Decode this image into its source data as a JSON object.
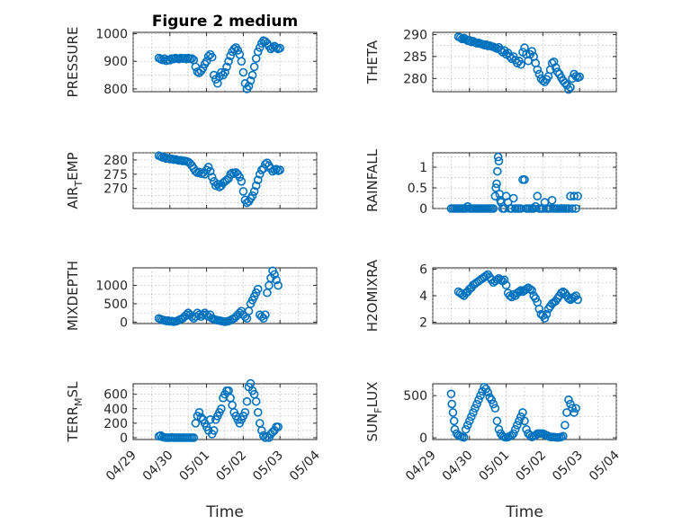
{
  "figure": {
    "background": "#ffffff",
    "marker_color": "#0072bd",
    "xlabel": "Time"
  },
  "chart_data": [
    {
      "id": "pressure",
      "type": "scatter",
      "title": "Figure 2 medium",
      "ylabel_main": "PRESSURE",
      "ylabel_sub": "",
      "ylabel_tail": "",
      "ylim": [
        790,
        1005
      ],
      "yticks": [
        800,
        900,
        1000
      ],
      "ytick_labels": [
        "800",
        "900",
        "1000"
      ],
      "x": [
        0.7,
        0.75,
        0.8,
        0.85,
        0.9,
        0.95,
        1.0,
        1.05,
        1.1,
        1.15,
        1.2,
        1.25,
        1.3,
        1.35,
        1.4,
        1.45,
        1.5,
        1.55,
        1.6,
        1.65,
        1.7,
        1.75,
        1.8,
        1.85,
        1.9,
        1.95,
        2.0,
        2.05,
        2.1,
        2.15,
        2.2,
        2.25,
        2.3,
        2.35,
        2.4,
        2.45,
        2.5,
        2.55,
        2.6,
        2.65,
        2.7,
        2.75,
        2.8,
        2.85,
        2.9,
        2.95,
        3.0,
        3.05,
        3.1,
        3.15,
        3.2,
        3.25,
        3.3,
        3.35,
        3.4,
        3.45,
        3.5,
        3.55,
        3.6,
        3.65,
        3.7,
        3.75,
        3.8,
        3.85,
        3.9,
        3.95,
        4.0
      ],
      "y": [
        912,
        908,
        905,
        910,
        902,
        906,
        904,
        910,
        908,
        912,
        910,
        908,
        912,
        910,
        911,
        908,
        912,
        909,
        910,
        905,
        880,
        862,
        858,
        865,
        875,
        890,
        900,
        918,
        925,
        915,
        850,
        835,
        820,
        845,
        860,
        850,
        860,
        880,
        900,
        920,
        935,
        945,
        950,
        940,
        925,
        900,
        860,
        820,
        800,
        810,
        830,
        850,
        880,
        910,
        935,
        950,
        965,
        975,
        972,
        965,
        955,
        945,
        950,
        955,
        950,
        945,
        948
      ]
    },
    {
      "id": "theta",
      "type": "scatter",
      "title": "",
      "ylabel_main": "THETA",
      "ylabel_sub": "",
      "ylabel_tail": "",
      "ylim": [
        277,
        290.5
      ],
      "yticks": [
        280,
        285,
        290
      ],
      "ytick_labels": [
        "280",
        "285",
        "290"
      ],
      "x": [
        0.7,
        0.75,
        0.8,
        0.85,
        0.9,
        0.95,
        1.0,
        1.05,
        1.1,
        1.15,
        1.2,
        1.25,
        1.3,
        1.35,
        1.4,
        1.45,
        1.5,
        1.55,
        1.6,
        1.65,
        1.7,
        1.75,
        1.8,
        1.85,
        1.9,
        1.95,
        2.0,
        2.05,
        2.1,
        2.15,
        2.2,
        2.25,
        2.3,
        2.35,
        2.4,
        2.45,
        2.5,
        2.55,
        2.6,
        2.65,
        2.7,
        2.75,
        2.8,
        2.85,
        2.9,
        2.95,
        3.0,
        3.05,
        3.1,
        3.15,
        3.2,
        3.25,
        3.3,
        3.35,
        3.4,
        3.45,
        3.5,
        3.55,
        3.6,
        3.65,
        3.7,
        3.75,
        3.8,
        3.85,
        3.9,
        3.95,
        4.0
      ],
      "y": [
        289.5,
        289.3,
        289.0,
        289.2,
        288.9,
        288.6,
        288.7,
        288.3,
        288.5,
        288.2,
        288.0,
        288.1,
        287.9,
        287.8,
        287.6,
        287.7,
        287.4,
        287.5,
        287.3,
        287.2,
        287.0,
        286.8,
        287.1,
        286.5,
        286.0,
        286.4,
        285.5,
        285.8,
        285.0,
        284.5,
        285.0,
        284.2,
        283.5,
        284.0,
        283.2,
        286.0,
        287.0,
        285.5,
        284.0,
        285.5,
        286.2,
        285.0,
        283.5,
        282.0,
        281.0,
        280.0,
        279.5,
        279.2,
        279.8,
        280.5,
        282.0,
        283.5,
        283.8,
        282.5,
        281.5,
        281.0,
        280.2,
        279.5,
        279.0,
        278.5,
        277.5,
        278.0,
        280.0,
        281.0,
        280.5,
        280.2,
        280.4
      ]
    },
    {
      "id": "air_temp",
      "type": "scatter",
      "title": "",
      "ylabel_main": "AIR",
      "ylabel_sub": "T",
      "ylabel_tail": "EMP",
      "ylim": [
        263,
        282.5
      ],
      "yticks": [
        270,
        275,
        280
      ],
      "ytick_labels": [
        "270",
        "275",
        "280"
      ],
      "x": [
        0.7,
        0.75,
        0.8,
        0.85,
        0.9,
        0.95,
        1.0,
        1.05,
        1.1,
        1.15,
        1.2,
        1.25,
        1.3,
        1.35,
        1.4,
        1.45,
        1.5,
        1.55,
        1.6,
        1.65,
        1.7,
        1.75,
        1.8,
        1.85,
        1.9,
        1.95,
        2.0,
        2.05,
        2.1,
        2.15,
        2.2,
        2.25,
        2.3,
        2.35,
        2.4,
        2.45,
        2.5,
        2.55,
        2.6,
        2.65,
        2.7,
        2.75,
        2.8,
        2.85,
        2.9,
        2.95,
        3.0,
        3.05,
        3.1,
        3.15,
        3.2,
        3.25,
        3.3,
        3.35,
        3.4,
        3.45,
        3.5,
        3.55,
        3.6,
        3.65,
        3.7,
        3.75,
        3.8,
        3.85,
        3.9,
        3.95,
        4.0
      ],
      "y": [
        281.5,
        281.2,
        280.9,
        281.0,
        280.5,
        280.6,
        280.3,
        280.4,
        280.1,
        280.2,
        280.0,
        279.8,
        279.9,
        279.6,
        279.7,
        279.5,
        279.3,
        278.8,
        278.0,
        277.0,
        276.0,
        275.5,
        275.8,
        275.2,
        275.5,
        275.0,
        276.5,
        277.5,
        276.0,
        274.0,
        272.5,
        271.0,
        271.5,
        270.5,
        271.0,
        272.0,
        272.5,
        273.0,
        273.5,
        275.0,
        275.5,
        275.2,
        275.6,
        275.0,
        274.0,
        272.5,
        269.0,
        266.0,
        265.0,
        265.5,
        266.5,
        267.5,
        269.0,
        271.0,
        273.0,
        275.0,
        276.5,
        277.0,
        278.5,
        279.0,
        278.0,
        277.0,
        276.0,
        276.5,
        276.8,
        276.2,
        276.5
      ]
    },
    {
      "id": "rainfall",
      "type": "scatter",
      "title": "",
      "ylabel_main": "RAINFALL",
      "ylabel_sub": "",
      "ylabel_tail": "",
      "ylim": [
        0,
        1.35
      ],
      "yticks": [
        0,
        0.5,
        1
      ],
      "ytick_labels": [
        "0",
        "0.5",
        "1"
      ],
      "x": [
        0.5,
        0.55,
        0.6,
        0.65,
        0.7,
        0.75,
        0.8,
        0.85,
        0.9,
        0.95,
        1.0,
        1.05,
        1.1,
        1.15,
        1.2,
        1.25,
        1.3,
        1.35,
        1.4,
        1.45,
        1.5,
        1.55,
        1.6,
        1.65,
        1.7,
        1.72,
        1.74,
        1.76,
        1.78,
        1.8,
        1.82,
        1.84,
        1.86,
        1.9,
        1.95,
        2.0,
        2.05,
        2.1,
        2.15,
        2.2,
        2.25,
        2.3,
        2.35,
        2.4,
        2.45,
        2.5,
        2.55,
        2.6,
        2.65,
        2.7,
        2.75,
        2.8,
        2.85,
        2.9,
        2.95,
        3.0,
        3.05,
        3.1,
        3.15,
        3.2,
        3.25,
        3.3,
        3.35,
        3.4,
        3.45,
        3.5,
        3.55,
        3.6,
        3.65,
        3.7,
        3.75,
        3.8,
        3.85,
        3.9,
        3.95
      ],
      "y": [
        0,
        0,
        0,
        0,
        0,
        0,
        0,
        0,
        0,
        0.05,
        0,
        0,
        0,
        0,
        0,
        0,
        0,
        0,
        0,
        0,
        0,
        0,
        0,
        0,
        0.3,
        0.5,
        0.6,
        0.9,
        1.25,
        1.15,
        0.35,
        0.2,
        0.15,
        0,
        0,
        0.3,
        0.15,
        0,
        0,
        0.25,
        0,
        0,
        0,
        0,
        0.7,
        0.7,
        0,
        0,
        0,
        0,
        0,
        0.05,
        0.3,
        0,
        0,
        0,
        0.15,
        0,
        0,
        0,
        0.2,
        0,
        0,
        0,
        0,
        0,
        0,
        0,
        0,
        0,
        0.3,
        0,
        0.3,
        0,
        0.3
      ]
    },
    {
      "id": "mixdepth",
      "type": "scatter",
      "title": "",
      "ylabel_main": "MIXDEPTH",
      "ylabel_sub": "",
      "ylabel_tail": "",
      "ylim": [
        -40,
        1480
      ],
      "yticks": [
        0,
        500,
        1000
      ],
      "ytick_labels": [
        "0",
        "500",
        "1000"
      ],
      "x": [
        0.7,
        0.75,
        0.8,
        0.85,
        0.9,
        0.95,
        1.0,
        1.05,
        1.1,
        1.15,
        1.2,
        1.25,
        1.3,
        1.35,
        1.4,
        1.45,
        1.5,
        1.55,
        1.6,
        1.65,
        1.7,
        1.75,
        1.8,
        1.85,
        1.9,
        1.95,
        2.0,
        2.05,
        2.1,
        2.15,
        2.2,
        2.25,
        2.3,
        2.35,
        2.4,
        2.45,
        2.5,
        2.55,
        2.6,
        2.65,
        2.7,
        2.75,
        2.8,
        2.85,
        2.9,
        2.95,
        3.0,
        3.05,
        3.1,
        3.15,
        3.2,
        3.25,
        3.3,
        3.35,
        3.4,
        3.45,
        3.5,
        3.55,
        3.6,
        3.65,
        3.7,
        3.75,
        3.8,
        3.85,
        3.9,
        3.95
      ],
      "y": [
        100,
        80,
        60,
        50,
        30,
        40,
        20,
        30,
        10,
        20,
        30,
        60,
        80,
        100,
        150,
        200,
        250,
        200,
        150,
        100,
        150,
        250,
        200,
        150,
        200,
        250,
        200,
        150,
        200,
        100,
        80,
        60,
        50,
        40,
        30,
        20,
        10,
        20,
        30,
        50,
        80,
        100,
        150,
        200,
        250,
        300,
        200,
        150,
        100,
        300,
        500,
        600,
        700,
        800,
        900,
        200,
        150,
        100,
        200,
        800,
        1000,
        1200,
        1400,
        1300,
        1150,
        1000
      ]
    },
    {
      "id": "h2omixra",
      "type": "scatter",
      "title": "",
      "ylabel_main": "H2OMIXRA",
      "ylabel_sub": "",
      "ylabel_tail": "",
      "ylim": [
        1.9,
        6.1
      ],
      "yticks": [
        2,
        4,
        6
      ],
      "ytick_labels": [
        "2",
        "4",
        "6"
      ],
      "x": [
        0.7,
        0.75,
        0.8,
        0.85,
        0.9,
        0.95,
        1.0,
        1.05,
        1.1,
        1.15,
        1.2,
        1.25,
        1.3,
        1.35,
        1.4,
        1.45,
        1.5,
        1.55,
        1.6,
        1.65,
        1.7,
        1.75,
        1.8,
        1.85,
        1.9,
        1.95,
        2.0,
        2.05,
        2.1,
        2.15,
        2.2,
        2.25,
        2.3,
        2.35,
        2.4,
        2.45,
        2.5,
        2.55,
        2.6,
        2.65,
        2.7,
        2.75,
        2.8,
        2.85,
        2.9,
        2.95,
        3.0,
        3.05,
        3.1,
        3.15,
        3.2,
        3.25,
        3.3,
        3.35,
        3.4,
        3.45,
        3.5,
        3.55,
        3.6,
        3.65,
        3.7,
        3.75,
        3.8,
        3.85,
        3.9,
        3.95
      ],
      "y": [
        4.3,
        4.2,
        4.1,
        4.0,
        4.2,
        4.3,
        4.5,
        4.6,
        4.8,
        4.9,
        5.0,
        5.1,
        5.2,
        5.3,
        5.4,
        5.5,
        5.6,
        5.4,
        5.2,
        5.0,
        5.1,
        5.2,
        5.3,
        5.2,
        5.1,
        5.2,
        4.8,
        4.2,
        4.0,
        3.9,
        4.1,
        4.0,
        4.2,
        4.3,
        4.4,
        4.3,
        4.4,
        4.5,
        4.6,
        4.5,
        4.4,
        4.0,
        3.8,
        3.5,
        3.0,
        2.6,
        2.5,
        2.3,
        2.6,
        3.0,
        3.2,
        3.4,
        3.5,
        3.6,
        3.8,
        4.0,
        4.2,
        4.3,
        4.2,
        4.0,
        3.8,
        3.7,
        3.8,
        3.9,
        4.0,
        3.7
      ]
    },
    {
      "id": "terr_msl",
      "type": "scatter",
      "title": "",
      "ylabel_main": "TERR",
      "ylabel_sub": "M",
      "ylabel_tail": "SL",
      "ylim": [
        -25,
        745
      ],
      "yticks": [
        0,
        200,
        400,
        600
      ],
      "ytick_labels": [
        "0",
        "200",
        "400",
        "600"
      ],
      "x": [
        0.7,
        0.75,
        0.8,
        0.85,
        0.9,
        0.95,
        1.0,
        1.05,
        1.1,
        1.15,
        1.2,
        1.25,
        1.3,
        1.35,
        1.4,
        1.45,
        1.5,
        1.55,
        1.6,
        1.65,
        1.7,
        1.75,
        1.8,
        1.85,
        1.9,
        1.95,
        2.0,
        2.05,
        2.1,
        2.15,
        2.2,
        2.25,
        2.3,
        2.35,
        2.4,
        2.45,
        2.5,
        2.55,
        2.6,
        2.65,
        2.7,
        2.75,
        2.8,
        2.85,
        2.9,
        2.95,
        3.0,
        3.05,
        3.1,
        3.15,
        3.2,
        3.25,
        3.3,
        3.35,
        3.4,
        3.45,
        3.5,
        3.55,
        3.6,
        3.65,
        3.7,
        3.75,
        3.8,
        3.85,
        3.9,
        3.95
      ],
      "y": [
        20,
        30,
        10,
        5,
        0,
        0,
        0,
        5,
        0,
        0,
        0,
        0,
        0,
        0,
        0,
        0,
        0,
        0,
        0,
        0,
        200,
        300,
        350,
        280,
        250,
        200,
        150,
        100,
        250,
        50,
        100,
        250,
        300,
        350,
        400,
        550,
        600,
        650,
        650,
        550,
        450,
        350,
        300,
        250,
        200,
        250,
        300,
        350,
        500,
        700,
        750,
        650,
        600,
        500,
        350,
        200,
        100,
        30,
        0,
        20,
        0,
        50,
        80,
        100,
        150,
        150
      ]
    },
    {
      "id": "sun_flux",
      "type": "scatter",
      "title": "",
      "ylabel_main": "SUN",
      "ylabel_sub": "F",
      "ylabel_tail": "LUX",
      "ylim": [
        -20,
        640
      ],
      "yticks": [
        0,
        500
      ],
      "ytick_labels": [
        "0",
        "500"
      ],
      "x": [
        0.5,
        0.52,
        0.55,
        0.58,
        0.6,
        0.65,
        0.7,
        0.75,
        0.8,
        0.85,
        0.9,
        0.95,
        1.0,
        1.05,
        1.1,
        1.15,
        1.2,
        1.25,
        1.3,
        1.35,
        1.4,
        1.45,
        1.5,
        1.55,
        1.6,
        1.65,
        1.7,
        1.75,
        1.8,
        1.85,
        1.9,
        1.95,
        2.0,
        2.05,
        2.1,
        2.15,
        2.2,
        2.25,
        2.3,
        2.35,
        2.4,
        2.45,
        2.5,
        2.55,
        2.6,
        2.65,
        2.7,
        2.75,
        2.8,
        2.85,
        2.9,
        2.95,
        3.0,
        3.05,
        3.1,
        3.15,
        3.2,
        3.25,
        3.3,
        3.35,
        3.4,
        3.45,
        3.5,
        3.55,
        3.6,
        3.65,
        3.7,
        3.75,
        3.8,
        3.85,
        3.9
      ],
      "y": [
        520,
        400,
        300,
        200,
        100,
        50,
        30,
        20,
        10,
        5,
        100,
        150,
        200,
        250,
        300,
        350,
        400,
        450,
        500,
        550,
        600,
        580,
        540,
        480,
        450,
        400,
        350,
        200,
        100,
        50,
        20,
        10,
        5,
        10,
        20,
        30,
        50,
        100,
        150,
        200,
        250,
        300,
        200,
        100,
        50,
        30,
        10,
        20,
        30,
        50,
        50,
        50,
        50,
        40,
        30,
        20,
        10,
        10,
        10,
        5,
        5,
        5,
        10,
        20,
        150,
        300,
        450,
        400,
        350,
        300,
        350
      ]
    }
  ],
  "x_axis": {
    "domain": [
      0,
      5
    ],
    "ticks": [
      0,
      1,
      2,
      3,
      4,
      5
    ],
    "tick_labels": [
      "04/29",
      "04/30",
      "05/01",
      "05/02",
      "05/03",
      "05/04"
    ]
  }
}
